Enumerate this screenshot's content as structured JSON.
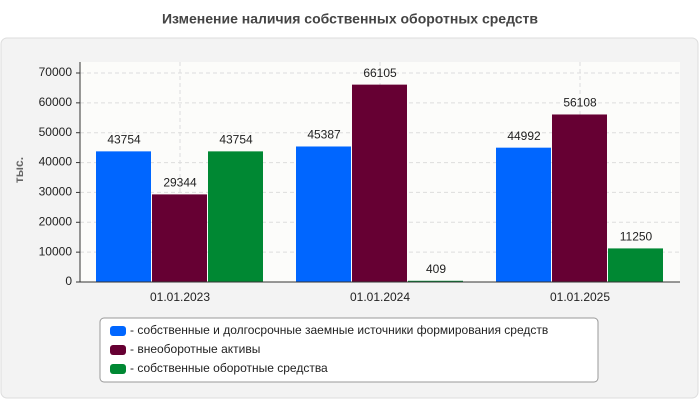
{
  "chart_data": {
    "type": "bar",
    "title": "Изменение наличия собственных оборотных средств",
    "y_label": "тыс.",
    "categories": [
      "01.01.2023",
      "01.01.2024",
      "01.01.2025"
    ],
    "series": [
      {
        "name": "- собственные и долгосрочные заемные источники формирования средств",
        "color": "#0066ff",
        "values": [
          43754,
          45387,
          44992
        ]
      },
      {
        "name": "- внеоборотные активы",
        "color": "#660033",
        "values": [
          29344,
          66105,
          56108
        ]
      },
      {
        "name": "- собственные оборотные средства",
        "color": "#008833",
        "values": [
          43754,
          409,
          11250
        ]
      }
    ],
    "ylim": [
      0,
      70000
    ],
    "yticks": [
      0,
      10000,
      20000,
      30000,
      40000,
      50000,
      60000,
      70000
    ],
    "grid": true
  }
}
